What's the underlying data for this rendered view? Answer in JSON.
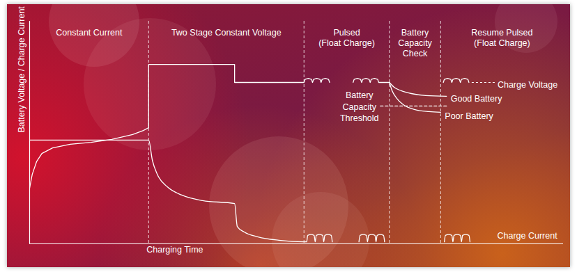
{
  "chart_data": {
    "type": "line",
    "xlabel": "Charging Time",
    "ylabel": "Battery Voltage / Charge Current",
    "xlim": [
      0,
      100
    ],
    "ylim": [
      0,
      100
    ],
    "tick_labels": false,
    "phases": [
      {
        "label": [
          "Constant Current"
        ],
        "x0": 0,
        "x1": 22.3
      },
      {
        "label": [
          "Two Stage Constant Voltage"
        ],
        "x0": 22.3,
        "x1": 51.4
      },
      {
        "label": [
          "Pulsed",
          "(Float Charge)"
        ],
        "x0": 51.4,
        "x1": 67.4
      },
      {
        "label": [
          "Battery",
          "Capacity",
          "Check"
        ],
        "x0": 67.4,
        "x1": 77.0
      },
      {
        "label": [
          "Resume Pulsed",
          "(Float Charge)"
        ],
        "x0": 77.0,
        "x1": 100
      }
    ],
    "series": [
      {
        "name": "Charge Voltage",
        "color": "#ffffff",
        "line_style": "solid",
        "x": [
          0,
          0.5,
          1.3,
          2.3,
          4.3,
          7.6,
          11.5,
          15.4,
          19.3,
          21.3,
          22.3,
          22.3,
          38.4,
          38.4,
          51.4,
          51.6,
          52.2,
          52.8,
          53.0,
          53.2,
          53.8,
          54.4,
          54.6,
          54.8,
          55.4,
          56.0,
          56.2,
          58.4,
          60.6,
          60.8,
          61.4,
          62.0,
          62.2,
          62.4,
          63.0,
          63.6,
          63.8,
          64.0,
          64.6,
          65.2,
          65.4,
          67.4,
          72.4,
          77.5,
          77.7,
          78.3,
          78.9,
          79.1,
          79.3,
          79.9,
          80.5,
          80.7,
          80.9,
          81.5,
          82.1,
          82.3
        ],
        "values": [
          25.0,
          31.3,
          36.9,
          40.6,
          43.1,
          44.7,
          45.6,
          46.9,
          49.1,
          50.9,
          52.2,
          80.6,
          80.6,
          72.5,
          72.5,
          73.9,
          74.3,
          73.9,
          72.5,
          73.9,
          74.3,
          73.9,
          72.5,
          73.9,
          74.3,
          73.9,
          72.5,
          null,
          72.5,
          73.9,
          74.3,
          73.9,
          72.5,
          73.9,
          74.3,
          73.9,
          72.5,
          73.9,
          74.3,
          73.9,
          72.5,
          72.5,
          null,
          72.5,
          73.9,
          74.3,
          73.9,
          72.5,
          73.9,
          74.3,
          73.9,
          72.5,
          73.9,
          74.3,
          73.9,
          72.5
        ]
      },
      {
        "name": "Charge Current",
        "color": "#ffffff",
        "line_style": "solid",
        "x": [
          0,
          22.3,
          23.0,
          23.9,
          25.8,
          28.5,
          32.4,
          38.4,
          38.9,
          40.2,
          42.8,
          46.7,
          51.4,
          51.9,
          52.1,
          52.7,
          53.3,
          53.5,
          53.7,
          54.3,
          54.9,
          55.1,
          55.3,
          55.9,
          56.5,
          56.7,
          59.2,
          61.7,
          61.9,
          62.5,
          63.1,
          63.3,
          63.5,
          64.1,
          64.7,
          64.9,
          65.1,
          65.7,
          66.3,
          66.5,
          72.1,
          77.7,
          77.9,
          78.5,
          79.1,
          79.3,
          79.5,
          80.1,
          80.7,
          80.9,
          81.1,
          81.7,
          82.3,
          82.5
        ],
        "values": [
          46.6,
          46.6,
          37.5,
          31.3,
          25.6,
          21.9,
          19.4,
          18.1,
          7.8,
          5.3,
          3.1,
          1.6,
          0.9,
          0.9,
          3.8,
          4.2,
          3.8,
          0.9,
          3.8,
          4.2,
          3.8,
          0.9,
          3.8,
          4.2,
          3.8,
          0.9,
          null,
          0.9,
          3.8,
          4.2,
          3.8,
          0.9,
          3.8,
          4.2,
          3.8,
          0.9,
          3.8,
          4.2,
          3.8,
          0.9,
          null,
          0.9,
          3.8,
          4.2,
          3.8,
          0.9,
          3.8,
          4.2,
          3.8,
          0.9,
          3.8,
          4.2,
          3.8,
          0.9
        ]
      },
      {
        "name": "Good Battery",
        "color": "#ffffff",
        "line_style": "solid",
        "x": [
          67.4,
          68.3,
          69.6,
          71.5,
          74.2,
          78.1
        ],
        "values": [
          72.5,
          70.3,
          68.8,
          67.5,
          66.6,
          66.3
        ]
      },
      {
        "name": "Poor Battery",
        "color": "#ffffff",
        "line_style": "solid",
        "x": [
          67.4,
          67.9,
          68.7,
          70.0,
          72.2,
          74.8,
          77.0
        ],
        "values": [
          72.5,
          68.8,
          65.6,
          62.5,
          60.3,
          59.4,
          59.1
        ]
      },
      {
        "name": "Battery Capacity Threshold",
        "color": "#ffffff",
        "line_style": "dashed",
        "x": [
          65.7,
          78.1
        ],
        "values": [
          61.9,
          61.9
        ]
      }
    ]
  }
}
